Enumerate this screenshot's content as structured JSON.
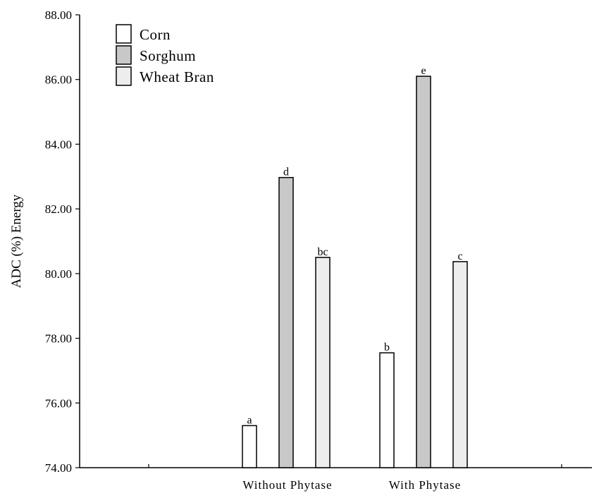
{
  "chart_data": {
    "type": "bar",
    "title": "",
    "xlabel": "",
    "ylabel": "ADC (%) Energy",
    "ylim": [
      74,
      88
    ],
    "yticks": [
      "74.00",
      "76.00",
      "78.00",
      "80.00",
      "82.00",
      "84.00",
      "86.00",
      "88.00"
    ],
    "categories": [
      "Without Phytase",
      "With Phytase"
    ],
    "series": [
      {
        "name": "Corn",
        "color": "#ffffff",
        "values": [
          75.3,
          77.55
        ],
        "labels": [
          "a",
          "b"
        ]
      },
      {
        "name": "Sorghum",
        "color": "#c8c8c8",
        "values": [
          82.97,
          86.1
        ],
        "labels": [
          "d",
          "e"
        ]
      },
      {
        "name": "Wheat Bran",
        "color": "#ededed",
        "values": [
          80.5,
          80.37
        ],
        "labels": [
          "bc",
          "c"
        ]
      }
    ],
    "grid": false,
    "legend_position": "top-left"
  }
}
